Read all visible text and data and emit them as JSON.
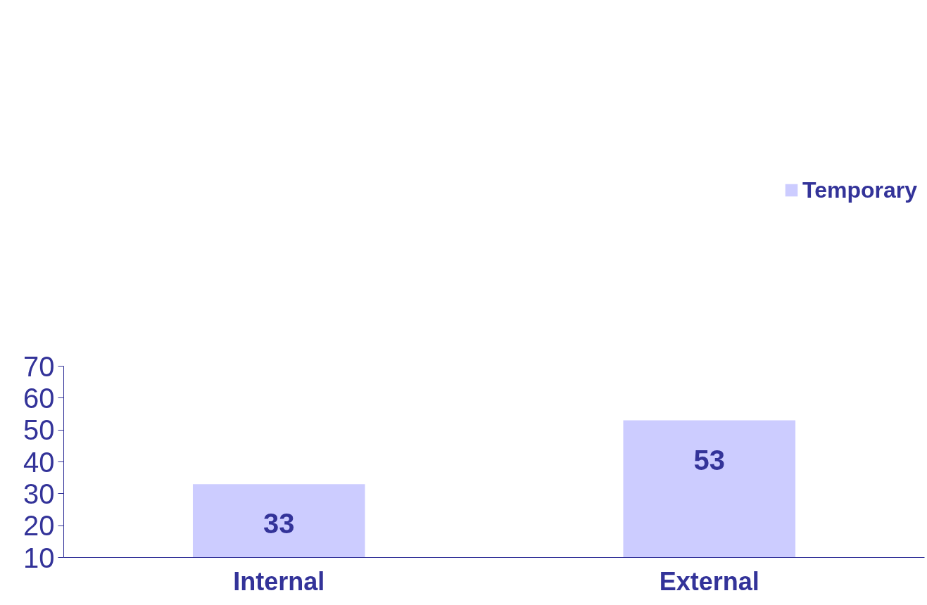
{
  "chart_data": {
    "type": "bar",
    "categories": [
      "Internal",
      "External"
    ],
    "series": [
      {
        "name": "Temporary",
        "color": "#ccccff",
        "values": [
          33,
          53
        ]
      }
    ],
    "ylim": [
      10,
      70
    ],
    "yticks": [
      10,
      20,
      30,
      40,
      50,
      60,
      70
    ],
    "grid": false,
    "legend": "top right",
    "data_labels": true
  }
}
